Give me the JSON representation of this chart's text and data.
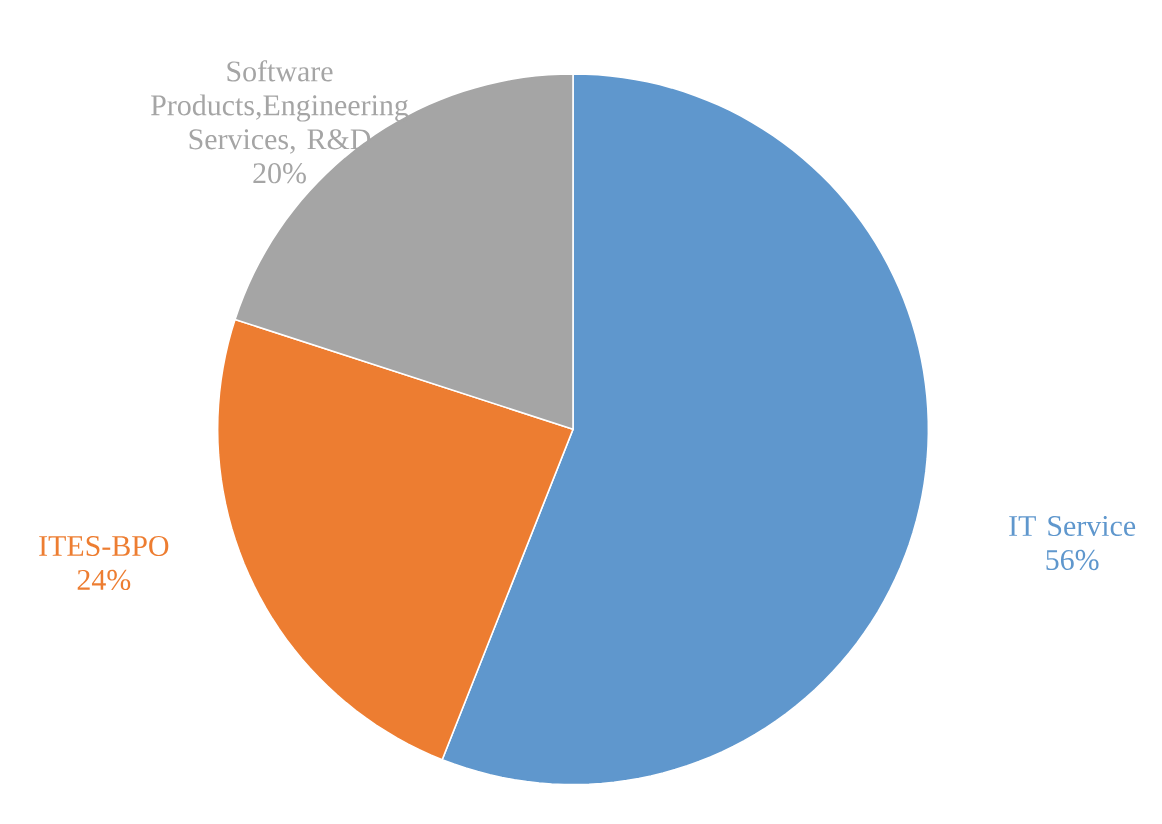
{
  "chart_data": {
    "type": "pie",
    "categories": [
      "IT Service",
      "ITES-BPO",
      "Software Products,Engineering Services, R&D"
    ],
    "values": [
      56,
      24,
      20
    ],
    "value_labels": [
      "56%",
      "24%",
      "20%"
    ],
    "colors": [
      "#5f97cd",
      "#ed7d31",
      "#a5a5a5"
    ]
  }
}
